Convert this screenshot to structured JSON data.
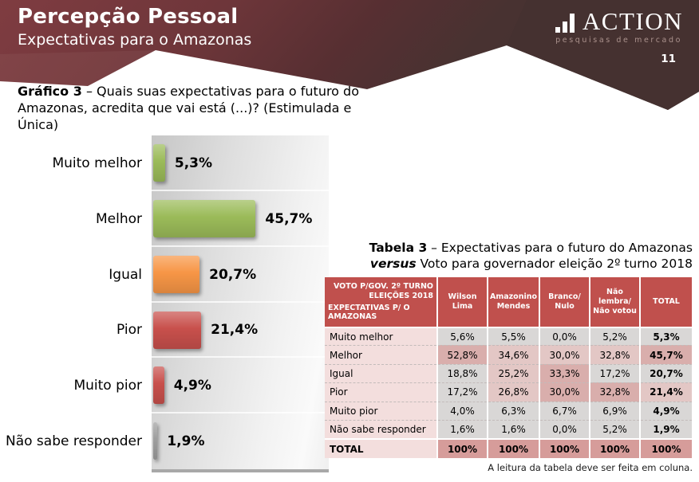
{
  "header": {
    "title": "Percepção Pessoal",
    "subtitle": "Expectativas para o Amazonas",
    "page_number": "11",
    "logo_name": "ACTION",
    "logo_tagline": "pesquisas de mercado"
  },
  "chart_title": {
    "prefix": "Gráfico 3",
    "line1_rest": " – Quais suas expectativas para o futuro do",
    "line2": "Amazonas, acredita que vai está (...)? (Estimulada e Única)"
  },
  "table_title": {
    "prefix": "Tabela 3",
    "line1_rest": " – Expectativas para o futuro do Amazonas",
    "line2_bold": "versus",
    "line2_rest": " Voto para governador eleição 2º turno 2018"
  },
  "colors": {
    "header_maroon": "#7d3a3f",
    "header_brown": "#453130",
    "table_header_bg": "#c0504d",
    "table_label_bg": "#f3dedd",
    "cell_gray": "#d9d7d6",
    "cell_pink_light": "#e3c7c5",
    "cell_pink_strong": "#d9aeac",
    "total_cell_bg": "#d69c9a",
    "bar_green": "#9bbb59",
    "bar_orange": "#f79646",
    "bar_red": "#c8504c",
    "bar_gray": "#9e9e9e"
  },
  "chart_data": [
    {
      "type": "bar",
      "orientation": "horizontal",
      "categories": [
        "Muito melhor",
        "Melhor",
        "Igual",
        "Pior",
        "Muito pior",
        "Não sabe responder"
      ],
      "values": [
        5.3,
        45.7,
        20.7,
        21.4,
        4.9,
        1.9
      ],
      "value_labels": [
        "5,3%",
        "45,7%",
        "20,7%",
        "21,4%",
        "4,9%",
        "1,9%"
      ],
      "bar_colors": [
        "#9bbb59",
        "#9bbb59",
        "#f79646",
        "#c8504c",
        "#c8504c",
        "#9e9e9e"
      ],
      "xlim": [
        0,
        79
      ],
      "grid": false,
      "legend": false,
      "plot_bg": "gray gradient"
    },
    {
      "type": "table",
      "corner": {
        "right1": "VOTO P/GOV. 2º TURNO",
        "right2": "ELEIÇÕES 2018",
        "left1": "EXPECTATIVAS P/ O",
        "left2": "AMAZONAS"
      },
      "columns": [
        "Wilson Lima",
        "Amazonino Mendes",
        "Branco/ Nulo",
        "Não lembra/ Não votou",
        "TOTAL"
      ],
      "row_labels": [
        "Muito melhor",
        "Melhor",
        "Igual",
        "Pior",
        "Muito pior",
        "Não sabe responder"
      ],
      "rows": [
        [
          "5,6%",
          "5,5%",
          "0,0%",
          "5,2%",
          "5,3%"
        ],
        [
          "52,8%",
          "34,6%",
          "30,0%",
          "32,8%",
          "45,7%"
        ],
        [
          "18,8%",
          "25,2%",
          "33,3%",
          "17,2%",
          "20,7%"
        ],
        [
          "17,2%",
          "26,8%",
          "30,0%",
          "32,8%",
          "21,4%"
        ],
        [
          "4,0%",
          "6,3%",
          "6,7%",
          "6,9%",
          "4,9%"
        ],
        [
          "1,6%",
          "1,6%",
          "0,0%",
          "5,2%",
          "1,9%"
        ]
      ],
      "highlights": [
        [
          "g",
          "g",
          "g",
          "g",
          "g"
        ],
        [
          "P",
          "p",
          "p",
          "p",
          "P"
        ],
        [
          "g",
          "p",
          "P",
          "g",
          "g"
        ],
        [
          "g",
          "p",
          "P",
          "P",
          "p"
        ],
        [
          "g",
          "g",
          "g",
          "g",
          "g"
        ],
        [
          "g",
          "g",
          "g",
          "g",
          "g"
        ]
      ],
      "total_label": "TOTAL",
      "total_row": [
        "100%",
        "100%",
        "100%",
        "100%",
        "100%"
      ],
      "note": "A leitura da tabela deve ser feita em coluna."
    }
  ]
}
